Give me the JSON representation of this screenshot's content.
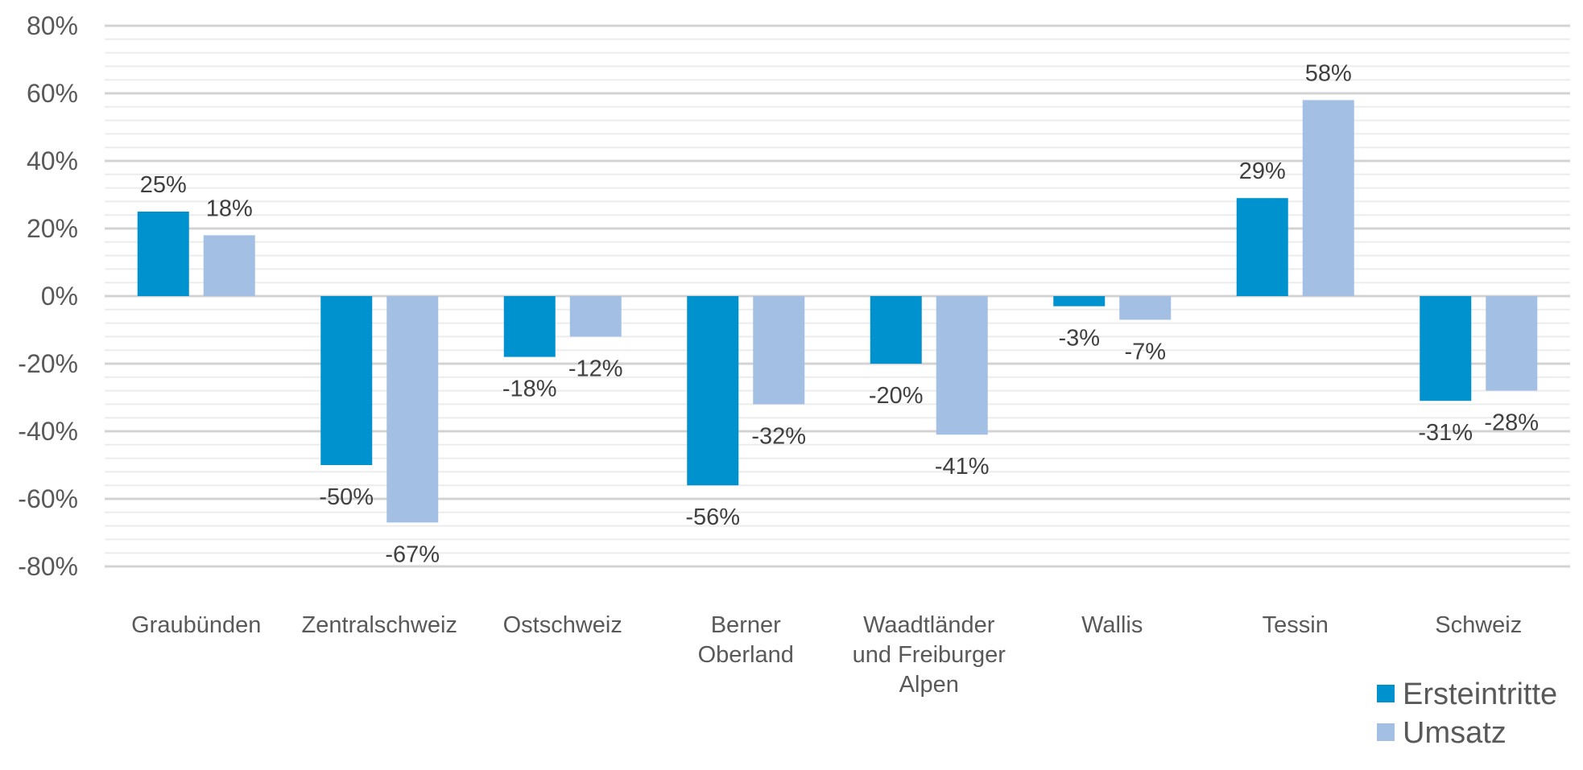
{
  "chart_data": {
    "type": "bar",
    "categories": [
      [
        "Graubünden"
      ],
      [
        "Zentralschweiz"
      ],
      [
        "Ostschweiz"
      ],
      [
        "Berner",
        "Oberland"
      ],
      [
        "Waadtländer",
        "und Freiburger",
        "Alpen"
      ],
      [
        "Wallis"
      ],
      [
        "Tessin"
      ],
      [
        "Schweiz"
      ]
    ],
    "series": [
      {
        "name": "Ersteintritte",
        "color": "#0092cf",
        "values": [
          25,
          -50,
          -18,
          -56,
          -20,
          -3,
          29,
          -31
        ],
        "labels": [
          "25%",
          "-50%",
          "-18%",
          "-56%",
          "-20%",
          "-3%",
          "29%",
          "-31%"
        ]
      },
      {
        "name": "Umsatz",
        "color": "#a3bfe3",
        "values": [
          18,
          -67,
          -12,
          -32,
          -41,
          -7,
          58,
          -28
        ],
        "labels": [
          "18%",
          "-67%",
          "-12%",
          "-32%",
          "-41%",
          "-7%",
          "58%",
          "-28%"
        ]
      }
    ],
    "ylim": [
      -80,
      80
    ],
    "yticks": [
      80,
      60,
      40,
      20,
      0,
      -20,
      -40,
      -60,
      -80
    ],
    "ytick_labels": [
      "80%",
      "60%",
      "40%",
      "20%",
      "0%",
      "-20%",
      "-40%",
      "-60%",
      "-80%"
    ],
    "grid": true,
    "legend_position": "bottom-right",
    "title": "",
    "xlabel": "",
    "ylabel": ""
  }
}
